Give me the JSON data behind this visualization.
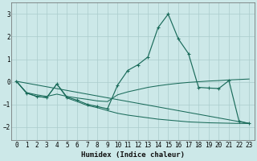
{
  "xlabel": "Humidex (Indice chaleur)",
  "bg_color": "#cce8e8",
  "grid_color": "#aacccc",
  "line_color": "#1a6b5a",
  "xlim": [
    -0.5,
    23.5
  ],
  "ylim": [
    -2.6,
    3.5
  ],
  "yticks": [
    -2,
    -1,
    0,
    1,
    2,
    3
  ],
  "xticks": [
    0,
    1,
    2,
    3,
    4,
    5,
    6,
    7,
    8,
    9,
    10,
    11,
    12,
    13,
    14,
    15,
    16,
    17,
    18,
    19,
    20,
    21,
    22,
    23
  ],
  "series1": [
    0.02,
    -0.5,
    -0.65,
    -0.7,
    -0.1,
    -0.68,
    -0.82,
    -1.0,
    -1.1,
    -1.2,
    -0.15,
    0.5,
    0.75,
    1.1,
    2.4,
    3.0,
    1.9,
    1.25,
    -0.25,
    -0.28,
    -0.3,
    0.05,
    -1.75,
    -1.85
  ],
  "line2": [
    [
      0,
      0.02
    ],
    [
      23,
      -1.85
    ]
  ],
  "series3": [
    0.02,
    -0.48,
    -0.58,
    -0.65,
    -0.55,
    -0.65,
    -0.72,
    -0.78,
    -0.85,
    -0.88,
    -0.58,
    -0.45,
    -0.35,
    -0.25,
    -0.18,
    -0.12,
    -0.07,
    -0.03,
    0.0,
    0.03,
    0.05,
    0.08,
    0.1,
    0.12
  ],
  "series4": [
    0.02,
    -0.5,
    -0.65,
    -0.7,
    -0.1,
    -0.72,
    -0.88,
    -1.05,
    -1.15,
    -1.28,
    -1.4,
    -1.48,
    -1.54,
    -1.6,
    -1.66,
    -1.7,
    -1.74,
    -1.78,
    -1.8,
    -1.82,
    -1.83,
    -1.84,
    -1.85,
    -1.85
  ]
}
